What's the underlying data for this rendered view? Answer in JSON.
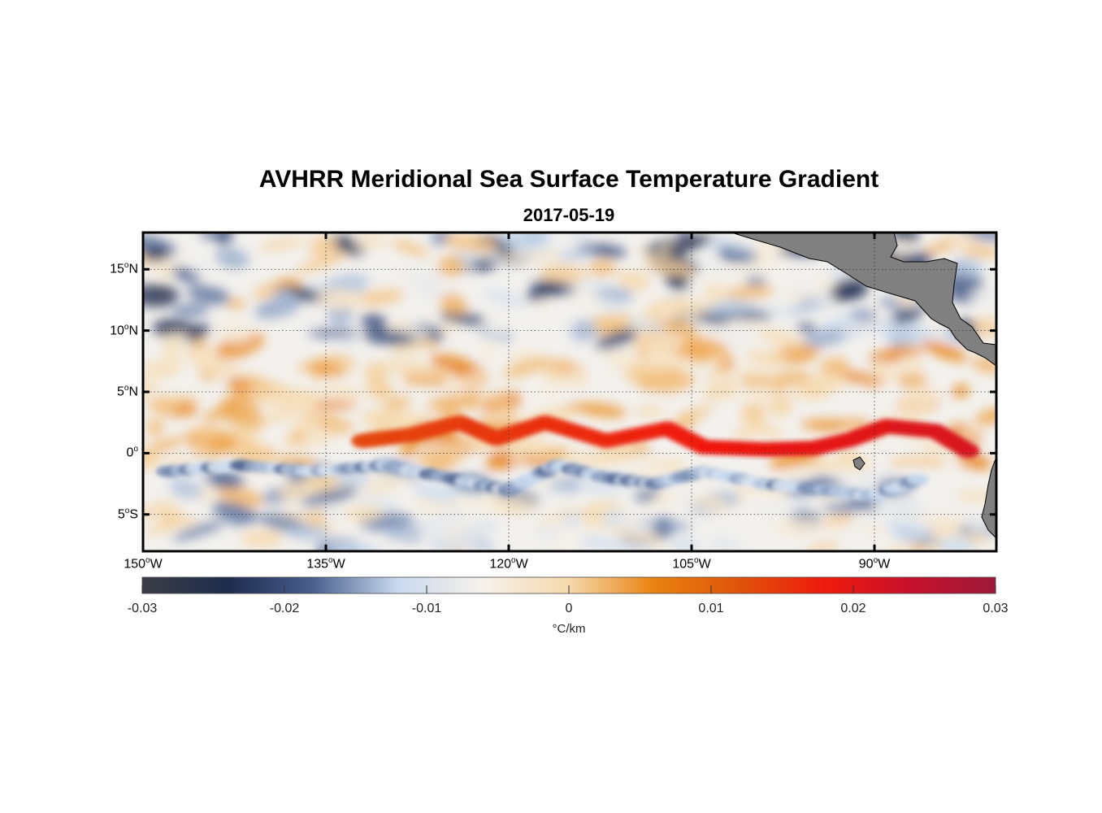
{
  "title": "AVHRR Meridional Sea Surface Temperature Gradient",
  "subtitle": "2017-05-19",
  "lat_ticks": [
    {
      "deg": "15",
      "hem": "N",
      "value": 15
    },
    {
      "deg": "10",
      "hem": "N",
      "value": 10
    },
    {
      "deg": "5",
      "hem": "N",
      "value": 5
    },
    {
      "deg": "0",
      "hem": "",
      "value": 0
    },
    {
      "deg": "5",
      "hem": "S",
      "value": -5
    }
  ],
  "lon_ticks": [
    {
      "deg": "150",
      "hem": "W",
      "value": -150
    },
    {
      "deg": "135",
      "hem": "W",
      "value": -135
    },
    {
      "deg": "120",
      "hem": "W",
      "value": -120
    },
    {
      "deg": "105",
      "hem": "W",
      "value": -105
    },
    {
      "deg": "90",
      "hem": "W",
      "value": -90
    }
  ],
  "map_extent": {
    "lon": [
      -150,
      -80
    ],
    "lat": [
      -8,
      18
    ]
  },
  "colorbar": {
    "ticks": [
      "-0.03",
      "-0.02",
      "-0.01",
      "0",
      "0.01",
      "0.02",
      "0.03"
    ],
    "range": [
      -0.03,
      0.03
    ],
    "unit": "°C/km",
    "colors": [
      "#3a3d45",
      "#1e2c4e",
      "#4a5f8e",
      "#c9daef",
      "#f6f1ea",
      "#f6d9ad",
      "#e8820e",
      "#e0530a",
      "#ef1a0d",
      "#c8102c",
      "#9c1a3a"
    ]
  },
  "land_color": "#808080",
  "chart_data": {
    "type": "heatmap",
    "title": "AVHRR Meridional Sea Surface Temperature Gradient",
    "subtitle": "2017-05-19",
    "xlabel": "",
    "ylabel": "",
    "xlim": [
      -150,
      -80
    ],
    "ylim": [
      -8,
      18
    ],
    "colorbar_range": [
      -0.03,
      0.03
    ],
    "colorbar_unit": "°C/km",
    "grid": true,
    "features": [
      {
        "name": "",
        "sign": "positive",
        "points": [
          [
            -132,
            1
          ],
          [
            -128,
            1.5
          ],
          [
            -124,
            2.5
          ],
          [
            -121,
            1.2
          ],
          [
            -117,
            2.5
          ],
          [
            -112,
            1
          ],
          [
            -107,
            2
          ],
          [
            -104,
            0.5
          ],
          [
            -99,
            0.3
          ],
          [
            -95,
            0.4
          ],
          [
            -92,
            1.1
          ],
          [
            -89,
            2.2
          ],
          [
            -85,
            1.8
          ],
          [
            -82,
            0
          ]
        ]
      },
      {
        "name": "",
        "sign": "negative",
        "points": [
          [
            -148,
            -1.5
          ],
          [
            -142,
            -1
          ],
          [
            -136,
            -1.5
          ],
          [
            -130,
            -1
          ],
          [
            -125,
            -2
          ],
          [
            -120,
            -3
          ],
          [
            -116,
            -1
          ],
          [
            -112,
            -2
          ],
          [
            -108,
            -2.5
          ],
          [
            -104,
            -1.5
          ],
          [
            -99,
            -2.5
          ],
          [
            -94,
            -3
          ],
          [
            -90,
            -3.5
          ],
          [
            -86,
            -2
          ]
        ]
      }
    ]
  }
}
